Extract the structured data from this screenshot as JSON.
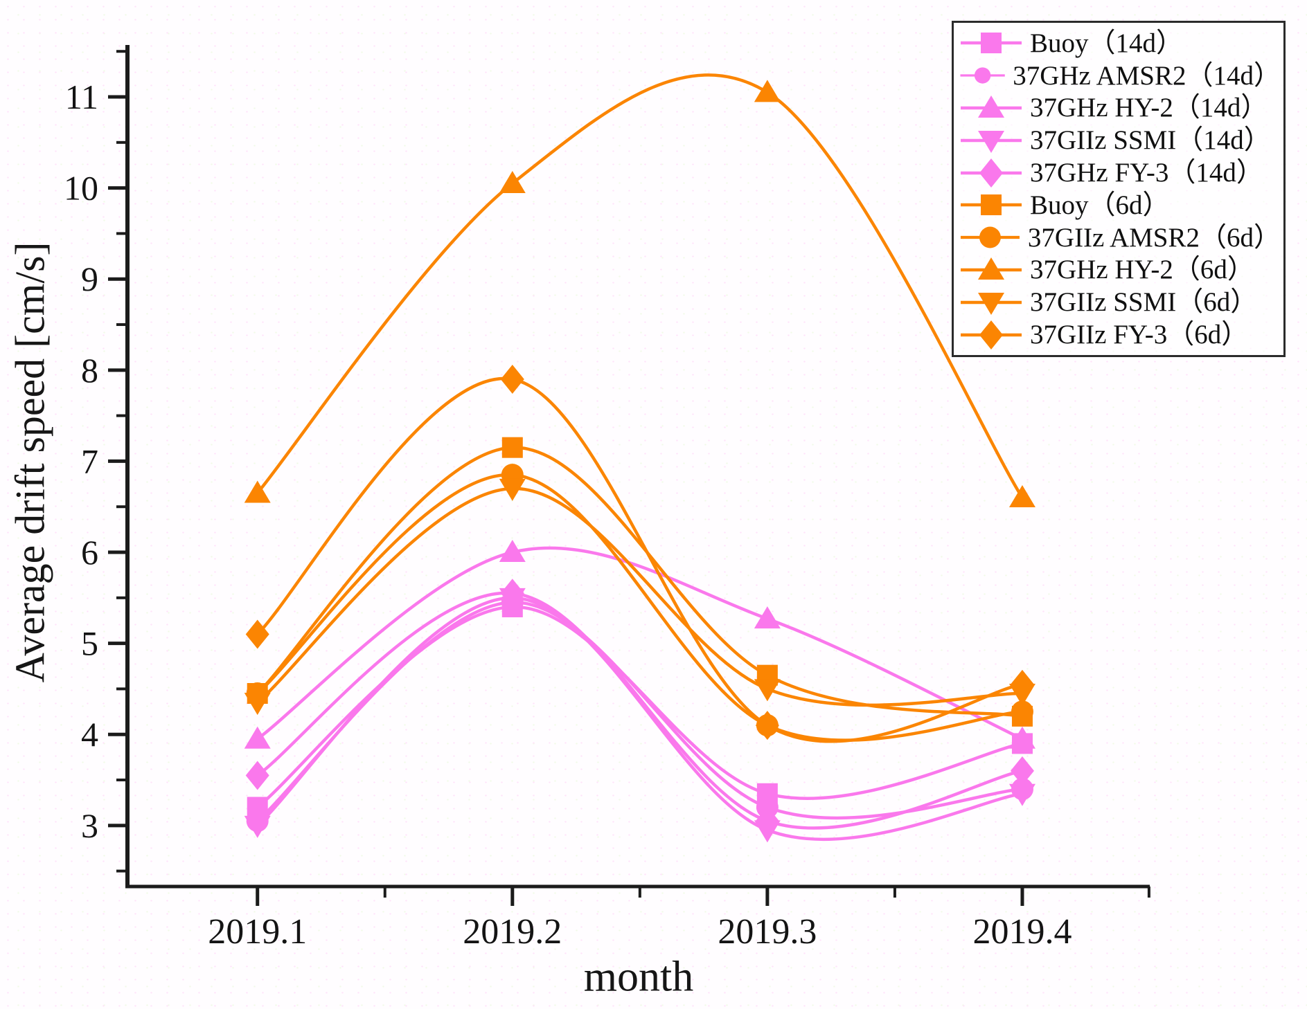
{
  "figure": {
    "xlabel": "month",
    "ylabel": "Average drift speed [cm/s]",
    "axis_color": "#1b1b1b",
    "legend_border_color": "#2b2b2b"
  },
  "chart_data": {
    "type": "line",
    "title": "",
    "xlabel": "month",
    "ylabel": "Average drift speed [cm/s]",
    "x_tick_labels": [
      "2019.1",
      "2019.2",
      "2019.3",
      "2019.4"
    ],
    "x": [
      2019.1,
      2019.2,
      2019.3,
      2019.4
    ],
    "y_ticks": [
      3,
      4,
      5,
      6,
      7,
      8,
      9,
      10,
      11
    ],
    "y_minor_ticks": [
      2.5,
      3.5,
      4.5,
      5.5,
      6.5,
      7.5,
      8.5,
      9.5,
      10.5,
      11.5
    ],
    "ylim": [
      2.33,
      11.57
    ],
    "xlim_category": [
      0.49,
      4.5
    ],
    "grid": false,
    "legend_position": "top-right",
    "colors": {
      "pink_14d": "#fa78ec",
      "orange_6d": "#fb8502"
    },
    "series": [
      {
        "name": "Buoy（14d）",
        "marker": "square",
        "color": "#fa78ec",
        "values": [
          3.2,
          5.4,
          3.35,
          3.9
        ]
      },
      {
        "name": "37GHz AMSR2（14d）",
        "marker": "circle",
        "color": "#fa78ec",
        "values": [
          3.05,
          5.45,
          3.2,
          3.4
        ]
      },
      {
        "name": "37GHz HY-2（14d）",
        "marker": "triangle-up",
        "color": "#fa78ec",
        "values": [
          3.95,
          6.0,
          5.27,
          3.95
        ]
      },
      {
        "name": "37GIIz SSMI（14d）",
        "marker": "triangle-down",
        "color": "#fa78ec",
        "values": [
          3.0,
          5.5,
          2.95,
          3.35
        ]
      },
      {
        "name": "37GHz FY-3（14d）",
        "marker": "diamond",
        "color": "#fa78ec",
        "values": [
          3.55,
          5.55,
          3.05,
          3.6
        ]
      },
      {
        "name": "Buoy（6d）",
        "marker": "square",
        "color": "#fb8502",
        "values": [
          4.45,
          7.15,
          4.65,
          4.2
        ]
      },
      {
        "name": "37GIIz AMSR2（6d）",
        "marker": "circle",
        "color": "#fb8502",
        "values": [
          4.45,
          6.85,
          4.1,
          4.25
        ]
      },
      {
        "name": "37GHz HY-2（6d）",
        "marker": "triangle-up",
        "color": "#fb8502",
        "values": [
          6.65,
          10.05,
          11.05,
          6.6
        ]
      },
      {
        "name": "37GIIz SSMI（6d）",
        "marker": "triangle-down",
        "color": "#fb8502",
        "values": [
          4.35,
          6.7,
          4.5,
          4.45
        ]
      },
      {
        "name": "37GIIz FY-3（6d）",
        "marker": "diamond",
        "color": "#fb8502",
        "values": [
          5.1,
          7.9,
          4.1,
          4.55
        ]
      }
    ]
  }
}
